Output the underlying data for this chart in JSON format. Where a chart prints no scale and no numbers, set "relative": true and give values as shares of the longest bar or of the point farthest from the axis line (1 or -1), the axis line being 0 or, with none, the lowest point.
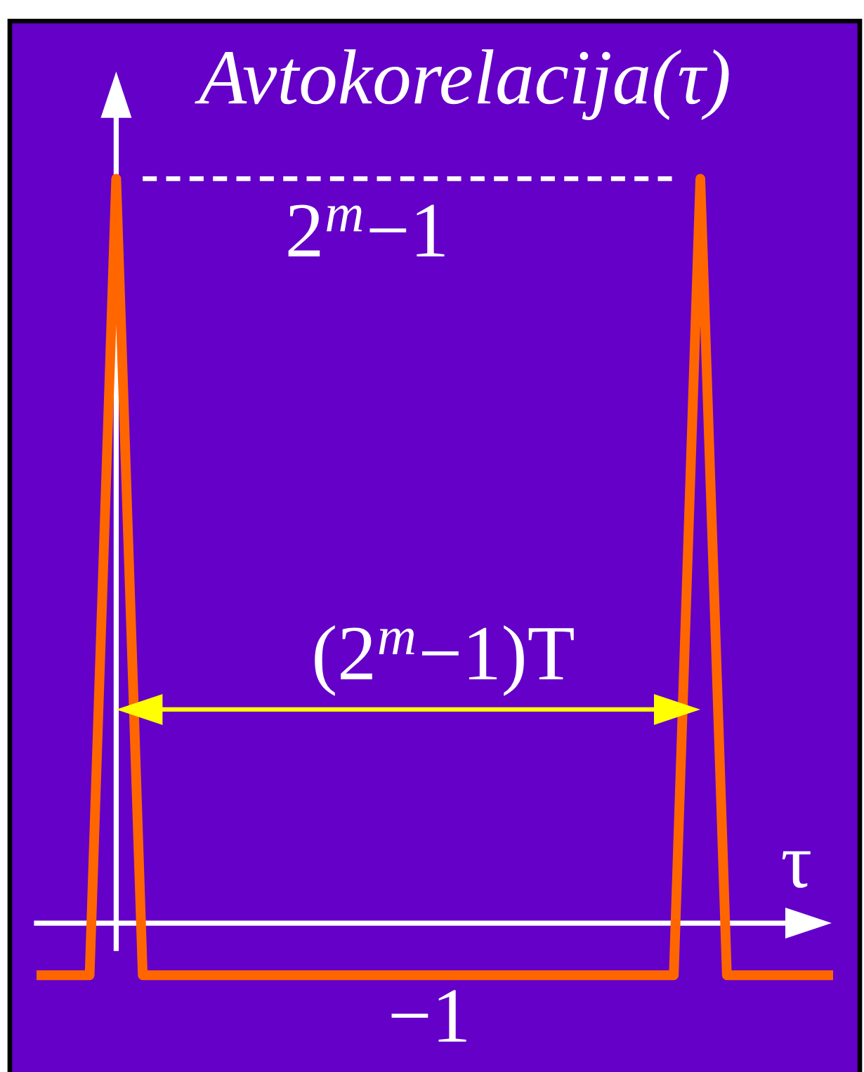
{
  "chart_data": {
    "type": "line",
    "relative": true,
    "line_style": "solid",
    "xlabel": "τ",
    "ylabel": "Avtokorelacija(τ)",
    "categories": [
      null,
      null,
      null,
      null,
      null,
      null,
      null,
      null,
      null,
      null,
      null,
      null,
      null,
      null,
      null,
      null,
      null,
      null,
      null,
      null,
      null,
      null,
      null,
      null,
      null,
      null,
      null,
      null,
      null,
      null,
      null
    ],
    "series": [
      {
        "color": "#ff6600",
        "values": [
          -0.07,
          -0.07,
          -0.07,
          1,
          -0.07,
          -0.07,
          -0.07,
          -0.07,
          -0.07,
          -0.07,
          -0.07,
          -0.07,
          -0.07,
          -0.07,
          -0.07,
          -0.07,
          -0.07,
          -0.07,
          -0.07,
          -0.07,
          -0.07,
          -0.07,
          -0.07,
          -0.07,
          -0.07,
          1,
          -0.07,
          -0.07,
          -0.07,
          -0.07,
          -0.07
        ]
      }
    ],
    "ref_lines": [
      {
        "axis": "y",
        "value": 1,
        "label": "2$^{m}$−1",
        "color": "#ffffff",
        "line_style": "dashed"
      }
    ],
    "annotations": [
      "(2$^{m}$−1)T",
      "−1"
    ]
  }
}
